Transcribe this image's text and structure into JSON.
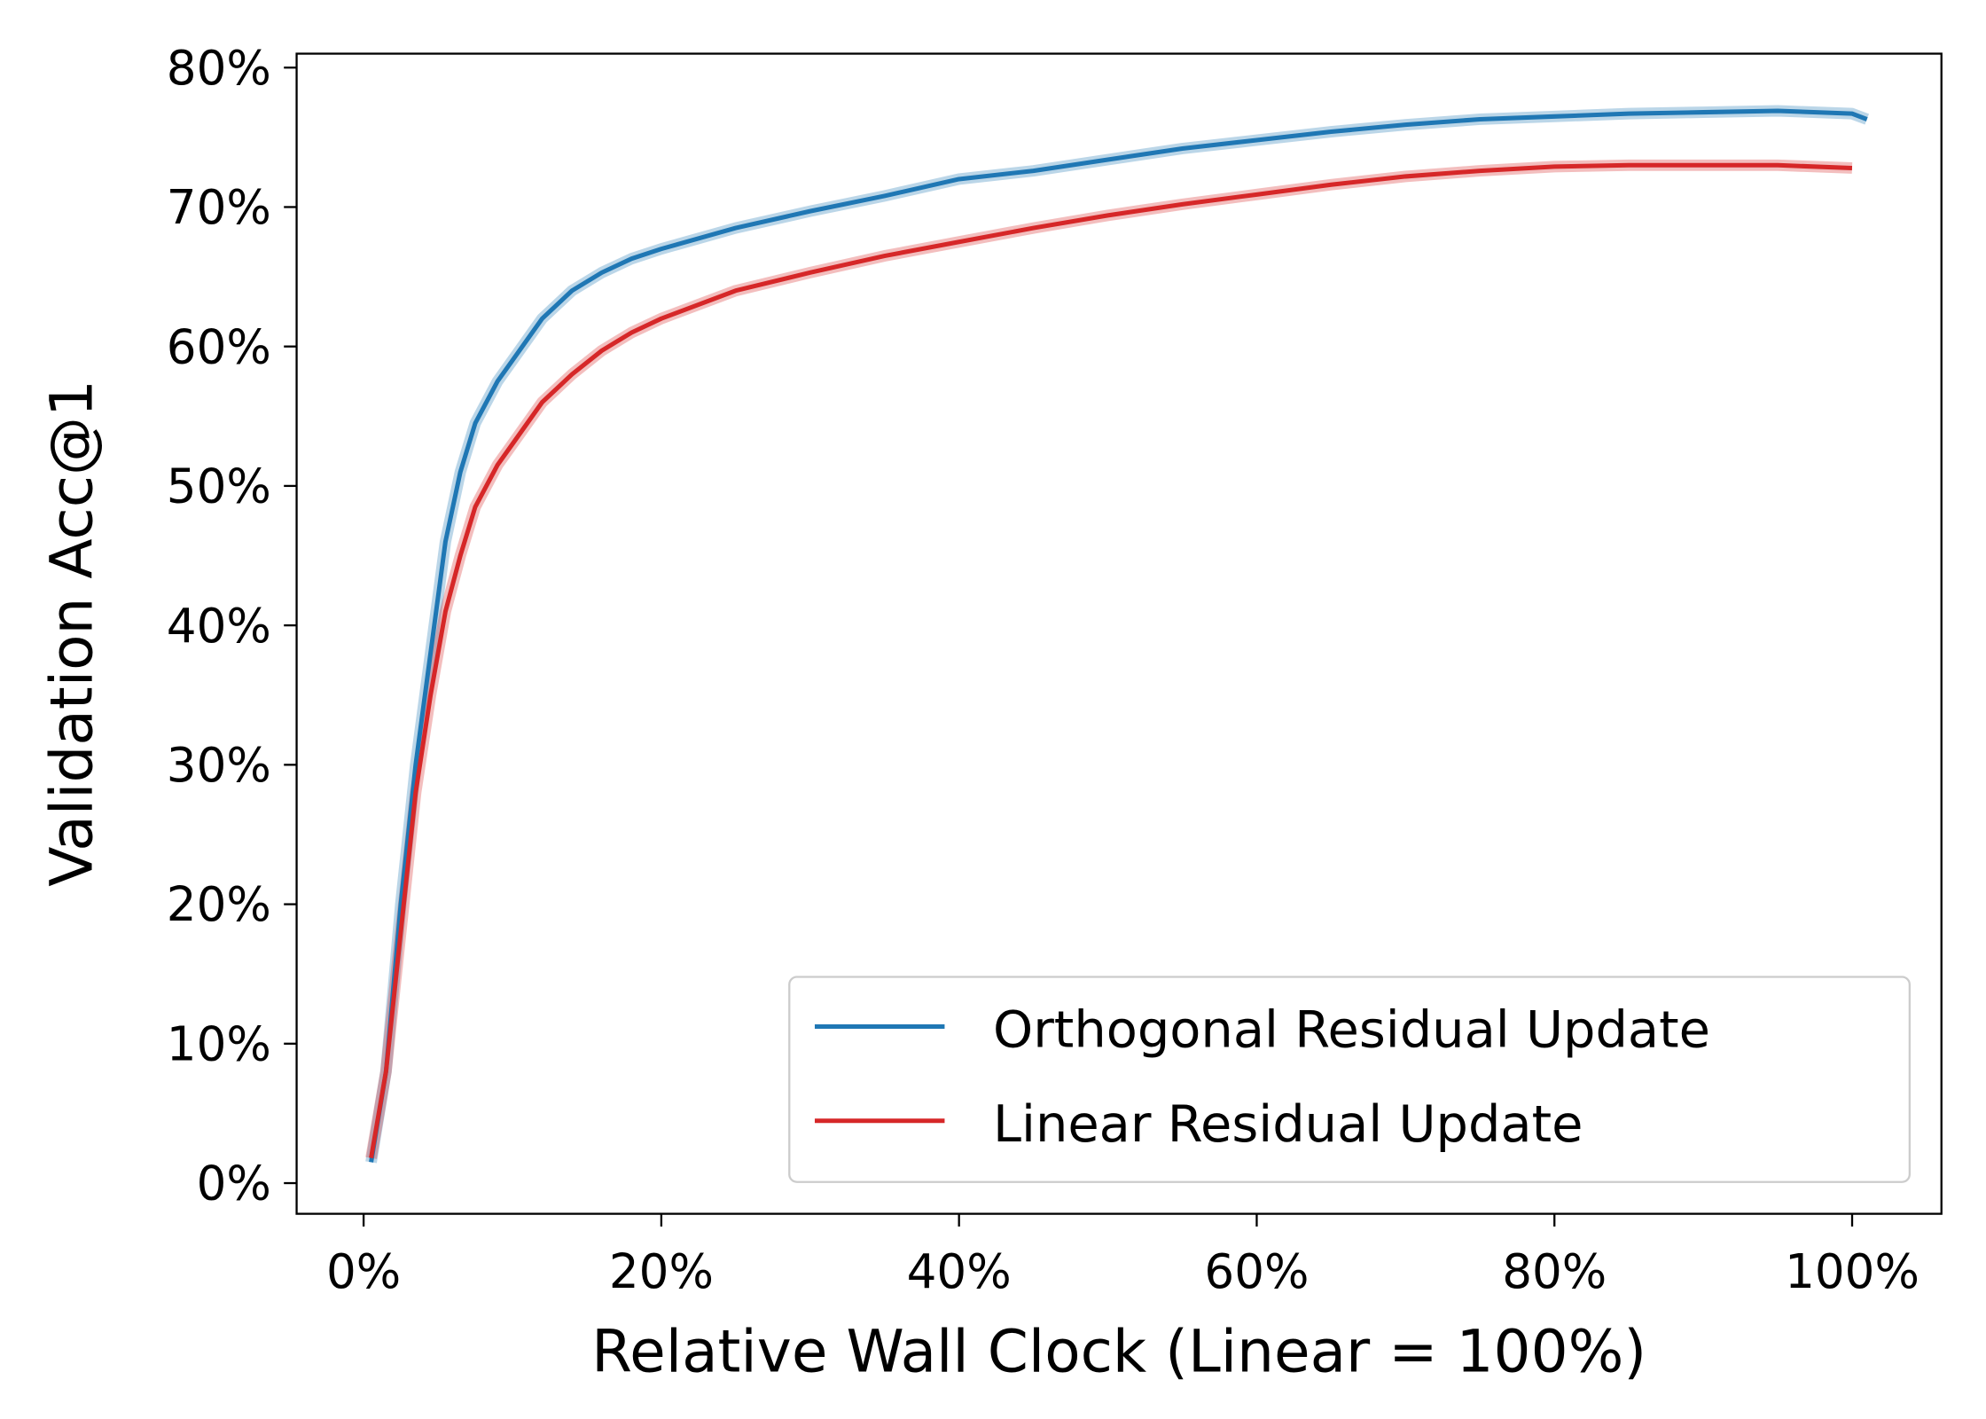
{
  "chart_data": {
    "type": "line",
    "title": "",
    "xlabel": "Relative Wall Clock (Linear = 100%)",
    "ylabel": "Validation Acc@1",
    "xlim": [
      -4.5,
      106
    ],
    "ylim": [
      -2.2,
      81
    ],
    "xticks": [
      "0%",
      "20%",
      "40%",
      "60%",
      "80%",
      "100%"
    ],
    "xtick_values": [
      0,
      20,
      40,
      60,
      80,
      100
    ],
    "yticks": [
      "0%",
      "10%",
      "20%",
      "30%",
      "40%",
      "50%",
      "60%",
      "70%",
      "80%"
    ],
    "ytick_values": [
      0,
      10,
      20,
      30,
      40,
      50,
      60,
      70,
      80
    ],
    "grid": false,
    "legend_position": "bottom-right",
    "series": [
      {
        "name": "Orthogonal Residual Update",
        "color": "#1f77b4",
        "x": [
          0.5,
          1.5,
          2.5,
          3.5,
          4.5,
          5.5,
          6.5,
          7.5,
          9,
          10,
          12,
          14,
          16,
          18,
          20,
          25,
          30,
          35,
          40,
          45,
          50,
          55,
          60,
          65,
          70,
          75,
          80,
          85,
          90,
          95,
          100,
          101
        ],
        "y": [
          1.5,
          8,
          20,
          30,
          38,
          46,
          51,
          54.5,
          57.5,
          59,
          62,
          64,
          65.3,
          66.3,
          67,
          68.5,
          69.7,
          70.8,
          72,
          72.6,
          73.4,
          74.2,
          74.8,
          75.4,
          75.9,
          76.3,
          76.5,
          76.7,
          76.8,
          76.9,
          76.7,
          76.3
        ]
      },
      {
        "name": "Linear Residual Update",
        "color": "#d62728",
        "x": [
          0.5,
          1.5,
          2.5,
          3.5,
          4.5,
          5.5,
          6.5,
          7.5,
          9,
          10,
          12,
          14,
          16,
          18,
          20,
          25,
          30,
          35,
          40,
          45,
          50,
          55,
          60,
          65,
          70,
          75,
          80,
          85,
          90,
          95,
          100
        ],
        "y": [
          1.8,
          8,
          18,
          28,
          35,
          41,
          45,
          48.5,
          51.5,
          53,
          56,
          58,
          59.7,
          61,
          62,
          64,
          65.3,
          66.5,
          67.5,
          68.5,
          69.4,
          70.2,
          70.9,
          71.6,
          72.2,
          72.6,
          72.9,
          73,
          73,
          73,
          72.8
        ]
      }
    ]
  }
}
